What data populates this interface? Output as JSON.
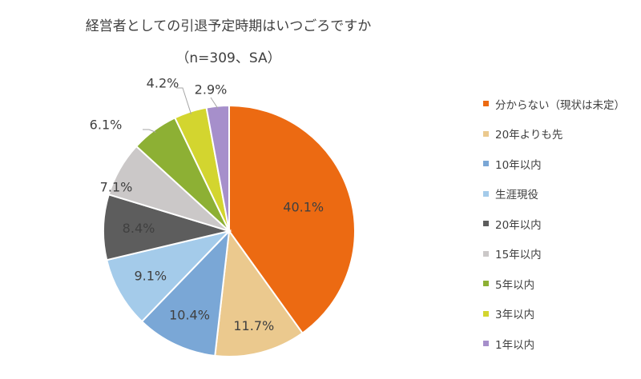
{
  "title": "経営者としての引退予定時期はいつごろですか",
  "subtitle": "（n=309、SA）",
  "chart_data": {
    "type": "pie",
    "title": "経営者としての引退予定時期はいつごろですか",
    "subtitle": "（n=309、SA）",
    "legend_position": "right",
    "slices": [
      {
        "label": "分からない（現状は未定）",
        "value": 40.1,
        "value_label": "40.1%",
        "color": "#ec6a12"
      },
      {
        "label": "20年よりも先",
        "value": 11.7,
        "value_label": "11.7%",
        "color": "#ebc98e"
      },
      {
        "label": "10年以内",
        "value": 10.4,
        "value_label": "10.4%",
        "color": "#7aa7d6"
      },
      {
        "label": "生涯現役",
        "value": 9.1,
        "value_label": "9.1%",
        "color": "#a4cbea"
      },
      {
        "label": "20年以内",
        "value": 8.4,
        "value_label": "8.4%",
        "color": "#5d5d5d"
      },
      {
        "label": "15年以内",
        "value": 7.1,
        "value_label": "7.1%",
        "color": "#cbc8c8"
      },
      {
        "label": "5年以内",
        "value": 6.1,
        "value_label": "6.1%",
        "color": "#8db034"
      },
      {
        "label": "3年以内",
        "value": 4.2,
        "value_label": "4.2%",
        "color": "#d3d52f"
      },
      {
        "label": "1年以内",
        "value": 2.9,
        "value_label": "2.9%",
        "color": "#a68fcb"
      }
    ]
  }
}
